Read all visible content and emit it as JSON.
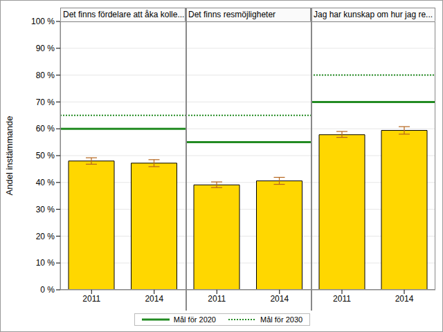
{
  "chart_data": {
    "type": "bar",
    "y_label": "Andel instämmande",
    "ylim": [
      0,
      100
    ],
    "yticks": [
      {
        "value": 0,
        "label": "0 %"
      },
      {
        "value": 10,
        "label": "10 %"
      },
      {
        "value": 20,
        "label": "20 %"
      },
      {
        "value": 30,
        "label": "30 %"
      },
      {
        "value": 40,
        "label": "40 %"
      },
      {
        "value": 50,
        "label": "50 %"
      },
      {
        "value": 60,
        "label": "60 %"
      },
      {
        "value": 70,
        "label": "70 %"
      },
      {
        "value": 80,
        "label": "80 %"
      },
      {
        "value": 90,
        "label": "90 %"
      },
      {
        "value": 100,
        "label": "100 %"
      }
    ],
    "grid": true,
    "color": "#ffd700",
    "legend": "bottom",
    "reference_lines": [
      {
        "name": "Mål för 2020",
        "color": "#228b22",
        "line_style": "solid"
      },
      {
        "name": "Mål för 2030",
        "color": "#228b22",
        "line_style": "dotted"
      }
    ],
    "panels": [
      {
        "title": "Det finns fördelare att åka kolle...",
        "categories": [
          "2011",
          "2014"
        ],
        "values": [
          48,
          47.2
        ],
        "error_low": [
          46.8,
          45.9
        ],
        "error_high": [
          49.2,
          48.5
        ],
        "goals": [
          60,
          65
        ]
      },
      {
        "title": "Det finns resmöjligheter",
        "categories": [
          "2011",
          "2014"
        ],
        "values": [
          39.1,
          40.6
        ],
        "error_low": [
          38.1,
          39.3
        ],
        "error_high": [
          40.2,
          41.9
        ],
        "goals": [
          55,
          65
        ]
      },
      {
        "title": "Jag har kunskap om hur jag re...",
        "categories": [
          "2011",
          "2014"
        ],
        "values": [
          57.8,
          59.4
        ],
        "error_low": [
          56.8,
          58.0
        ],
        "error_high": [
          59.0,
          60.8
        ],
        "goals": [
          70,
          80
        ]
      }
    ]
  }
}
